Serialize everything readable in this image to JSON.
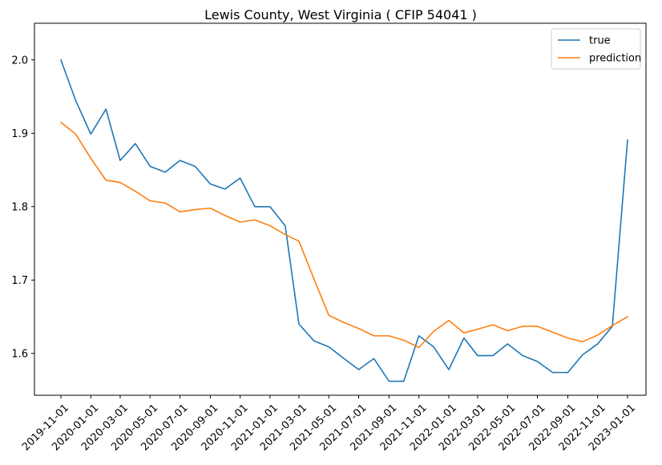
{
  "chart_data": {
    "type": "line",
    "title": "Lewis County, West Virginia ( CFIP 54041 )",
    "xlabel": "",
    "ylabel": "",
    "ylim": [
      1.543,
      2.05
    ],
    "yticks": [
      1.6,
      1.7,
      1.8,
      1.9,
      2.0
    ],
    "ytick_labels": [
      "1.6",
      "1.7",
      "1.8",
      "1.9",
      "2.0"
    ],
    "x": [
      "2019-11-01",
      "2019-12-01",
      "2020-01-01",
      "2020-02-01",
      "2020-03-01",
      "2020-04-01",
      "2020-05-01",
      "2020-06-01",
      "2020-07-01",
      "2020-08-01",
      "2020-09-01",
      "2020-10-01",
      "2020-11-01",
      "2020-12-01",
      "2021-01-01",
      "2021-02-01",
      "2021-03-01",
      "2021-04-01",
      "2021-05-01",
      "2021-06-01",
      "2021-07-01",
      "2021-08-01",
      "2021-09-01",
      "2021-10-01",
      "2021-11-01",
      "2021-12-01",
      "2022-01-01",
      "2022-02-01",
      "2022-03-01",
      "2022-04-01",
      "2022-05-01",
      "2022-06-01",
      "2022-07-01",
      "2022-08-01",
      "2022-09-01",
      "2022-10-01",
      "2022-11-01",
      "2022-12-01",
      "2023-01-01"
    ],
    "xticks": [
      "2019-11-01",
      "2020-01-01",
      "2020-03-01",
      "2020-05-01",
      "2020-07-01",
      "2020-09-01",
      "2020-11-01",
      "2021-01-01",
      "2021-03-01",
      "2021-05-01",
      "2021-07-01",
      "2021-09-01",
      "2021-11-01",
      "2022-01-01",
      "2022-03-01",
      "2022-05-01",
      "2022-07-01",
      "2022-09-01",
      "2022-11-01",
      "2023-01-01"
    ],
    "grid": false,
    "legend": "top-right",
    "series": [
      {
        "name": "true",
        "color": "#1f77b4",
        "values": [
          2.0,
          1.945,
          1.899,
          1.933,
          1.863,
          1.886,
          1.855,
          1.847,
          1.863,
          1.855,
          1.831,
          1.824,
          1.839,
          1.8,
          1.8,
          1.774,
          1.64,
          1.617,
          1.609,
          1.593,
          1.578,
          1.593,
          1.562,
          1.562,
          1.624,
          1.609,
          1.578,
          1.621,
          1.597,
          1.597,
          1.613,
          1.597,
          1.589,
          1.574,
          1.574,
          1.598,
          1.613,
          1.637,
          1.891
        ]
      },
      {
        "name": "prediction",
        "color": "#ff7f0e",
        "values": [
          1.915,
          1.899,
          1.866,
          1.836,
          1.833,
          1.821,
          1.808,
          1.805,
          1.793,
          1.796,
          1.798,
          1.788,
          1.779,
          1.782,
          1.774,
          1.762,
          1.753,
          1.701,
          1.652,
          1.642,
          1.634,
          1.624,
          1.624,
          1.618,
          1.608,
          1.63,
          1.645,
          1.628,
          1.633,
          1.639,
          1.631,
          1.637,
          1.637,
          1.629,
          1.621,
          1.616,
          1.625,
          1.638,
          1.65
        ]
      }
    ]
  }
}
